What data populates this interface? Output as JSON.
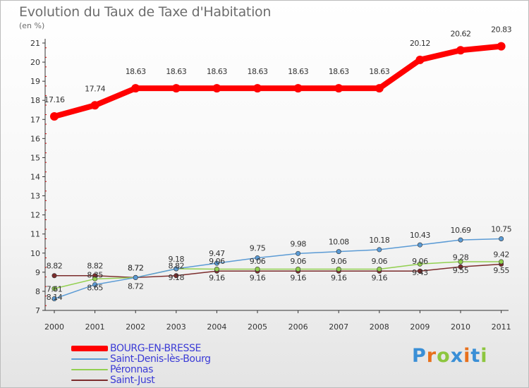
{
  "title": "Evolution du Taux de Taxe d'Habitation",
  "subtitle": "(en %)",
  "logo": {
    "letters": [
      "P",
      "r",
      "o",
      "x",
      "i",
      "t",
      "i"
    ],
    "colors": [
      "#3a8fd6",
      "#e8701c",
      "#8dc63f",
      "#3a8fd6",
      "#e8701c",
      "#3a8fd6",
      "#8dc63f"
    ]
  },
  "chart_data": {
    "type": "line",
    "title": "Evolution du Taux de Taxe d'Habitation",
    "ylabel": "(en %)",
    "xlabel": "",
    "x": [
      "2000",
      "2001",
      "2002",
      "2003",
      "2004",
      "2005",
      "2006",
      "2007",
      "2008",
      "2009",
      "2010",
      "2011"
    ],
    "ylim": [
      7,
      21
    ],
    "yticks": [
      "7",
      "8",
      "9",
      "10",
      "11",
      "12",
      "13",
      "14",
      "15",
      "16",
      "17",
      "18",
      "19",
      "20",
      "21"
    ],
    "grid": false,
    "legend_position": "bottom-left",
    "series": [
      {
        "name": "BOURG-EN-BRESSE",
        "color": "#ff0000",
        "values": [
          17.16,
          17.74,
          18.63,
          18.63,
          18.63,
          18.63,
          18.63,
          18.63,
          18.63,
          20.12,
          20.62,
          20.83
        ],
        "labels": [
          "17.16",
          "17.74",
          "18.63",
          "18.63",
          "18.63",
          "18.63",
          "18.63",
          "18.63",
          "18.63",
          "20.12",
          "20.62",
          "20.83"
        ]
      },
      {
        "name": "Saint-Denis-lès-Bourg",
        "color": "#5b9bd5",
        "values": [
          7.61,
          8.35,
          8.72,
          9.18,
          9.47,
          9.75,
          9.98,
          10.08,
          10.18,
          10.43,
          10.69,
          10.75
        ],
        "labels": [
          "7.61",
          "8.35",
          "8.72",
          "9.18",
          "9.47",
          "9.75",
          "9.98",
          "10.08",
          "10.18",
          "10.43",
          "10.69",
          "10.75"
        ]
      },
      {
        "name": "Péronnas",
        "color": "#92d050",
        "values": [
          8.14,
          8.65,
          8.72,
          9.18,
          9.16,
          9.16,
          9.16,
          9.16,
          9.16,
          9.43,
          9.55,
          9.55
        ],
        "labels": [
          "8.14",
          "8.65",
          "8.72",
          "9.18",
          "9.16",
          "9.16",
          "9.16",
          "9.16",
          "9.16",
          "9.43",
          "9.55",
          "9.55"
        ]
      },
      {
        "name": "Saint-Just",
        "color": "#7b2c2c",
        "values": [
          8.82,
          8.82,
          8.72,
          8.82,
          9.06,
          9.06,
          9.06,
          9.06,
          9.06,
          9.06,
          9.28,
          9.42
        ],
        "labels": [
          "8.82",
          "8.82",
          "8.72",
          "8.82",
          "9.06",
          "9.06",
          "9.06",
          "9.06",
          "9.06",
          "9.06",
          "9.28",
          "9.42"
        ]
      }
    ]
  }
}
